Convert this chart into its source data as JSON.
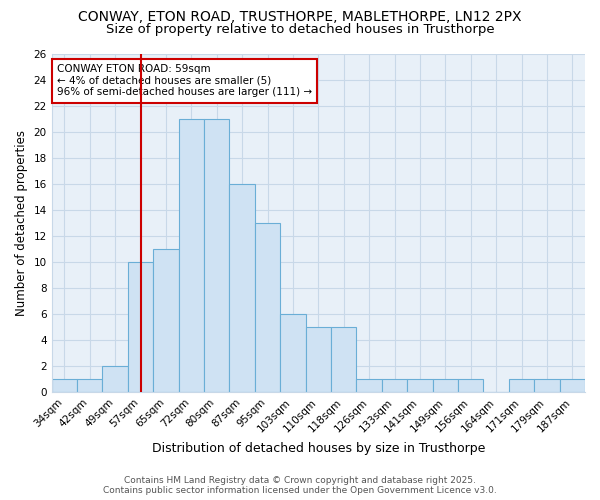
{
  "title1": "CONWAY, ETON ROAD, TRUSTHORPE, MABLETHORPE, LN12 2PX",
  "title2": "Size of property relative to detached houses in Trusthorpe",
  "xlabel": "Distribution of detached houses by size in Trusthorpe",
  "ylabel": "Number of detached properties",
  "annotation_title": "CONWAY ETON ROAD: 59sqm",
  "annotation_line1": "← 4% of detached houses are smaller (5)",
  "annotation_line2": "96% of semi-detached houses are larger (111) →",
  "footer1": "Contains HM Land Registry data © Crown copyright and database right 2025.",
  "footer2": "Contains public sector information licensed under the Open Government Licence v3.0.",
  "bin_edges": [
    34,
    42,
    49,
    57,
    65,
    72,
    80,
    87,
    95,
    103,
    110,
    118,
    126,
    133,
    141,
    149,
    156,
    164,
    171,
    179,
    187,
    195
  ],
  "bin_labels": [
    "34sqm",
    "42sqm",
    "49sqm",
    "57sqm",
    "65sqm",
    "72sqm",
    "80sqm",
    "87sqm",
    "95sqm",
    "103sqm",
    "110sqm",
    "118sqm",
    "126sqm",
    "133sqm",
    "141sqm",
    "149sqm",
    "156sqm",
    "164sqm",
    "171sqm",
    "179sqm",
    "187sqm"
  ],
  "counts": [
    1,
    1,
    2,
    10,
    11,
    21,
    21,
    16,
    13,
    6,
    5,
    5,
    1,
    1,
    1,
    1,
    1,
    0,
    1,
    1,
    1
  ],
  "bar_color": "#cfe2f3",
  "bar_edge_color": "#6aaed6",
  "vline_color": "#cc0000",
  "vline_x_index": 3.0,
  "annotation_box_color": "#ffffff",
  "annotation_box_edge": "#cc0000",
  "ylim": [
    0,
    26
  ],
  "yticks": [
    0,
    2,
    4,
    6,
    8,
    10,
    12,
    14,
    16,
    18,
    20,
    22,
    24,
    26
  ],
  "grid_color": "#c8d8e8",
  "background_color": "#ffffff",
  "plot_bg_color": "#e8f0f8",
  "title_fontsize": 10,
  "subtitle_fontsize": 9.5,
  "tick_fontsize": 7.5,
  "xlabel_fontsize": 9,
  "ylabel_fontsize": 8.5,
  "annotation_fontsize": 7.5,
  "footer_fontsize": 6.5,
  "footer_color": "#555555"
}
